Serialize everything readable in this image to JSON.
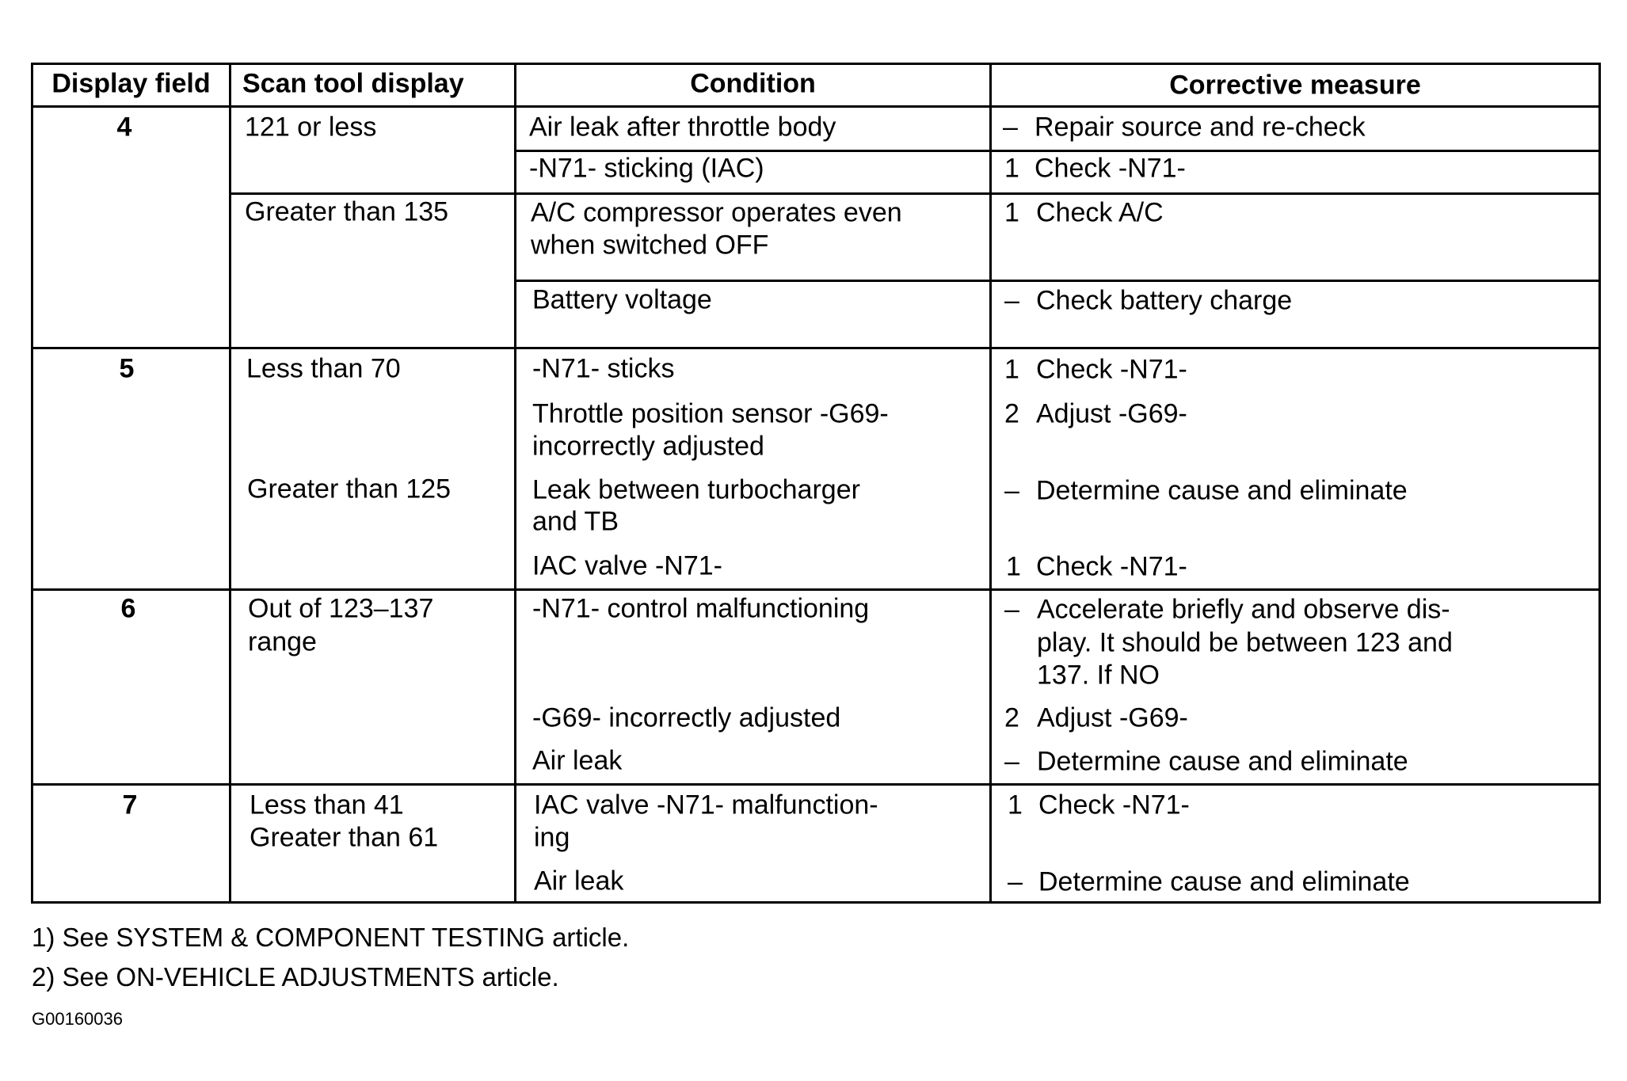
{
  "table": {
    "headers": [
      "Display field",
      "Scan tool display",
      "Condition",
      "Corrective measure"
    ],
    "rows": [
      {
        "field": "4",
        "scan": [
          "121 or less",
          "Greater than 135"
        ],
        "conditions": [
          "Air leak after throttle body",
          "-N71- sticking  (IAC)",
          "A/C compressor operates even",
          "when switched OFF",
          "Battery voltage"
        ],
        "measures": [
          {
            "m": "–",
            "t": "Repair source and re-check"
          },
          {
            "m": "1",
            "t": "Check -N71-"
          },
          {
            "m": "1",
            "t": "Check A/C"
          },
          {
            "m": "–",
            "t": "Check battery charge"
          }
        ]
      },
      {
        "field": "5",
        "scan": [
          "Less than 70",
          "Greater than 125"
        ],
        "conditions": [
          "-N71- sticks",
          "Throttle position sensor -G69-",
          "incorrectly adjusted",
          "Leak between turbocharger",
          "and TB",
          "IAC valve -N71-"
        ],
        "measures": [
          {
            "m": "1",
            "t": "Check -N71-"
          },
          {
            "m": "2",
            "t": "Adjust -G69-"
          },
          {
            "m": "–",
            "t": "Determine cause and eliminate"
          },
          {
            "m": "1",
            "t": "Check -N71-"
          }
        ]
      },
      {
        "field": "6",
        "scan": [
          "Out of 123–137",
          "range"
        ],
        "conditions": [
          "-N71- control malfunctioning",
          "-G69- incorrectly adjusted",
          "Air leak"
        ],
        "measures": [
          {
            "m": "–",
            "t": "Accelerate briefly and observe dis-"
          },
          {
            "m": "",
            "t": "play.  It should be between 123 and"
          },
          {
            "m": "",
            "t": "137.  If NO"
          },
          {
            "m": "2",
            "t": "Adjust -G69-"
          },
          {
            "m": "–",
            "t": "Determine cause and eliminate"
          }
        ]
      },
      {
        "field": "7",
        "scan": [
          "Less than 41",
          "Greater than 61"
        ],
        "conditions": [
          "IAC valve -N71- malfunction-",
          "ing",
          "Air leak"
        ],
        "measures": [
          {
            "m": "1",
            "t": "Check -N71-"
          },
          {
            "m": "–",
            "t": "Determine cause and eliminate"
          }
        ]
      }
    ]
  },
  "footnotes": [
    "1) See SYSTEM & COMPONENT TESTING article.",
    "2) See ON-VEHICLE ADJUSTMENTS article."
  ],
  "figure_code": "G00160036"
}
